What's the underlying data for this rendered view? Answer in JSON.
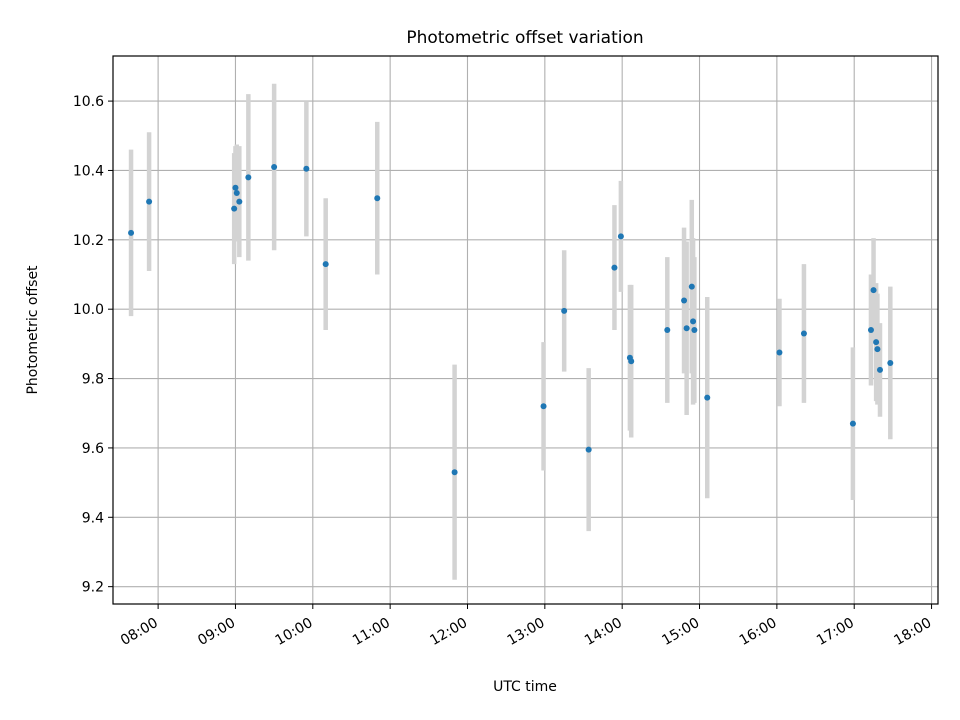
{
  "chart_data": {
    "type": "scatter",
    "title": "Photometric offset variation",
    "xlabel": "UTC time",
    "ylabel": "Photometric offset",
    "x_format": "HH:MM",
    "xlim": [
      "07:25",
      "18:05"
    ],
    "ylim": [
      9.15,
      10.73
    ],
    "x_ticks": [
      "08:00",
      "09:00",
      "10:00",
      "11:00",
      "12:00",
      "13:00",
      "14:00",
      "15:00",
      "16:00",
      "17:00",
      "18:00"
    ],
    "y_ticks": [
      "9.2",
      "9.4",
      "9.6",
      "9.8",
      "10.0",
      "10.2",
      "10.4",
      "10.6"
    ],
    "grid": true,
    "colors": {
      "point": "#1f77b4",
      "errorbar": "#d3d3d3",
      "grid": "#b0b0b0"
    },
    "series": [
      {
        "x": [
          "07:39",
          "07:53",
          "08:59",
          "09:00",
          "09:01",
          "09:03",
          "09:10",
          "09:30",
          "09:55",
          "10:10",
          "10:50",
          "11:50",
          "12:59",
          "13:15",
          "13:34",
          "13:54",
          "13:59",
          "14:06",
          "14:07",
          "14:35",
          "14:48",
          "14:50",
          "14:54",
          "14:55",
          "14:56",
          "15:06",
          "16:02",
          "16:21",
          "16:59",
          "17:13",
          "17:15",
          "17:17",
          "17:18",
          "17:20",
          "17:28"
        ],
        "y": [
          10.22,
          10.31,
          10.29,
          10.35,
          10.335,
          10.31,
          10.38,
          10.41,
          10.405,
          10.13,
          10.32,
          9.53,
          9.72,
          9.995,
          9.595,
          10.12,
          10.21,
          9.86,
          9.85,
          9.94,
          10.025,
          9.945,
          10.065,
          9.965,
          9.94,
          9.745,
          9.875,
          9.93,
          9.67,
          9.94,
          10.055,
          9.905,
          9.885,
          9.825,
          9.845
        ],
        "err": [
          0.24,
          0.2,
          0.16,
          0.12,
          0.14,
          0.16,
          0.24,
          0.24,
          0.195,
          0.19,
          0.22,
          0.31,
          0.185,
          0.175,
          0.235,
          0.18,
          0.16,
          0.21,
          0.22,
          0.21,
          0.21,
          0.25,
          0.25,
          0.24,
          0.21,
          0.29,
          0.155,
          0.2,
          0.22,
          0.16,
          0.15,
          0.17,
          0.16,
          0.135,
          0.22
        ]
      }
    ]
  }
}
